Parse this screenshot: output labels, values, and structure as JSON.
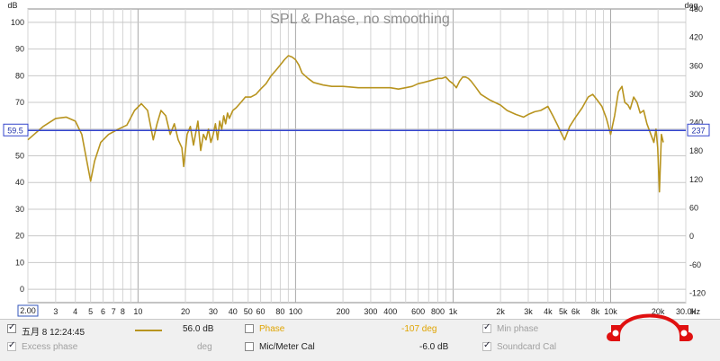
{
  "chart_data": {
    "type": "line",
    "title": "SPL & Phase, no smoothing",
    "y_unit": "dB",
    "y2_unit": "deg",
    "x_unit": "Hz",
    "x_scale": "log",
    "xlim": [
      2,
      30000
    ],
    "ylim": [
      -5,
      105
    ],
    "y2lim": [
      -140,
      480
    ],
    "y_ticks": [
      0,
      10,
      20,
      30,
      40,
      50,
      60,
      70,
      80,
      90,
      100
    ],
    "y2_ticks": [
      -120,
      -60,
      0,
      60,
      120,
      180,
      240,
      300,
      360,
      420,
      480
    ],
    "x_tick_labels": [
      {
        "v": 3,
        "t": "3"
      },
      {
        "v": 4,
        "t": "4"
      },
      {
        "v": 5,
        "t": "5"
      },
      {
        "v": 6,
        "t": "6"
      },
      {
        "v": 7,
        "t": "7"
      },
      {
        "v": 8,
        "t": "8"
      },
      {
        "v": 10,
        "t": "10"
      },
      {
        "v": 20,
        "t": "20"
      },
      {
        "v": 30,
        "t": "30"
      },
      {
        "v": 40,
        "t": "40"
      },
      {
        "v": 50,
        "t": "50"
      },
      {
        "v": 60,
        "t": "60"
      },
      {
        "v": 80,
        "t": "80"
      },
      {
        "v": 100,
        "t": "100"
      },
      {
        "v": 200,
        "t": "200"
      },
      {
        "v": 300,
        "t": "300"
      },
      {
        "v": 400,
        "t": "400"
      },
      {
        "v": 600,
        "t": "600"
      },
      {
        "v": 800,
        "t": "800"
      },
      {
        "v": 1000,
        "t": "1k"
      },
      {
        "v": 2000,
        "t": "2k"
      },
      {
        "v": 3000,
        "t": "3k"
      },
      {
        "v": 4000,
        "t": "4k"
      },
      {
        "v": 5000,
        "t": "5k"
      },
      {
        "v": 6000,
        "t": "6k"
      },
      {
        "v": 8000,
        "t": "8k"
      },
      {
        "v": 10000,
        "t": "10k"
      },
      {
        "v": 20000,
        "t": "20k"
      },
      {
        "v": 30000,
        "t": "30.0k"
      }
    ],
    "x_start_label": "2.00",
    "cursor": {
      "y": 59.5,
      "y_label": "59.5",
      "y2_label": "237"
    },
    "grid": true,
    "series": [
      {
        "color": "#b8941f",
        "x": [
          2,
          2.5,
          3,
          3.5,
          4,
          4.4,
          4.8,
          5,
          5.3,
          5.8,
          6.5,
          7.5,
          8.5,
          9.5,
          10.5,
          11.5,
          12.5,
          13.2,
          14,
          15,
          16,
          17,
          18,
          19,
          19.5,
          20.5,
          21.5,
          22.5,
          24,
          25,
          26,
          27,
          28,
          29,
          30,
          31,
          32,
          33,
          34,
          35,
          36,
          37,
          38,
          40,
          42,
          45,
          48,
          52,
          56,
          60,
          65,
          70,
          75,
          80,
          85,
          90,
          95,
          100,
          105,
          110,
          120,
          130,
          150,
          170,
          200,
          250,
          300,
          350,
          400,
          450,
          500,
          550,
          600,
          650,
          700,
          750,
          800,
          850,
          900,
          950,
          1000,
          1050,
          1100,
          1150,
          1200,
          1250,
          1300,
          1400,
          1500,
          1700,
          2000,
          2200,
          2500,
          2800,
          3000,
          3300,
          3600,
          4000,
          4300,
          4600,
          4900,
          5100,
          5500,
          6000,
          6600,
          7200,
          7700,
          8200,
          8800,
          9400,
          10000,
          10600,
          11200,
          11800,
          12300,
          12900,
          13300,
          14000,
          14700,
          15400,
          16200,
          17000,
          18000,
          18800,
          19400,
          19900,
          20400,
          21000,
          21600
        ],
        "values": [
          56,
          61,
          64,
          64.5,
          63,
          58,
          46,
          40.5,
          48,
          55,
          58,
          60,
          61.5,
          67,
          69.5,
          67,
          56,
          62,
          67,
          65,
          58,
          62,
          56,
          53,
          46,
          58,
          61,
          54,
          63,
          52,
          58,
          56,
          60,
          55,
          58,
          62,
          56,
          63,
          60,
          65,
          62,
          66,
          64,
          67,
          68,
          70,
          72,
          72,
          73,
          75,
          77,
          80,
          82,
          84,
          86,
          87.5,
          87,
          86,
          84,
          81,
          79,
          77.5,
          76.5,
          76,
          76,
          75.5,
          75.5,
          75.5,
          75.5,
          75,
          75.5,
          76,
          77,
          77.5,
          78,
          78.5,
          79,
          79,
          79.5,
          78,
          77,
          75.5,
          78,
          79.5,
          79.5,
          79,
          78,
          75.5,
          73,
          71,
          69,
          67,
          65.5,
          64.5,
          65.5,
          66.5,
          67,
          68.5,
          65,
          61.5,
          58,
          56,
          61,
          64.5,
          68,
          72,
          73,
          71,
          68.5,
          64,
          58,
          65,
          74,
          76,
          70,
          69,
          67.5,
          72,
          70,
          66,
          67,
          62,
          58,
          55,
          60,
          53,
          36.5,
          58,
          55
        ]
      }
    ]
  },
  "legend": {
    "row1": {
      "measurement": {
        "checked": true,
        "label": "五月 8 12:24:45",
        "value": "56.0 dB"
      },
      "phase": {
        "checked": false,
        "label": "Phase",
        "value": "-107 deg"
      },
      "min_phase": {
        "checked": true,
        "label": "Min phase"
      }
    },
    "row2": {
      "excess_phase": {
        "checked": true,
        "label": "Excess phase",
        "unit": "deg"
      },
      "mic_cal": {
        "checked": false,
        "label": "Mic/Meter Cal",
        "value": "-6.0 dB"
      },
      "soundcard_cal": {
        "checked": true,
        "label": "Soundcard Cal"
      }
    },
    "colors": {
      "measurement": "#b8941f",
      "phase": "#e0a400",
      "disabled": "#a0a0a0"
    }
  }
}
